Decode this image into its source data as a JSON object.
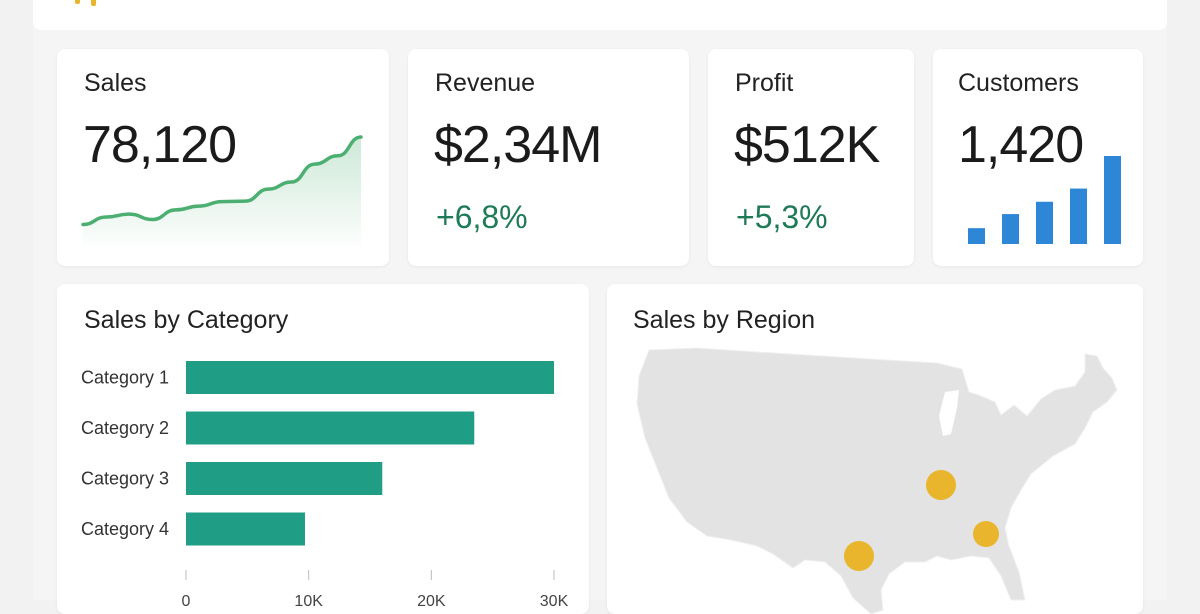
{
  "kpis": {
    "sales": {
      "title": "Sales",
      "value": "78,120",
      "trend": [
        3,
        4.8,
        5.5,
        4.2,
        6.5,
        7.4,
        8.5,
        8.6,
        11.5,
        13.2,
        17.5,
        19.5,
        24
      ]
    },
    "revenue": {
      "title": "Revenue",
      "value": "$2,34M",
      "delta": "+6,8%"
    },
    "profit": {
      "title": "Profit",
      "value": "$512K",
      "delta": "+5,3%"
    },
    "customers": {
      "title": "Customers",
      "value": "1,420",
      "bars": [
        0.18,
        0.34,
        0.48,
        0.63,
        1.0
      ]
    }
  },
  "category_panel": {
    "title": "Sales by Category",
    "chart_data": {
      "type": "bar",
      "orientation": "horizontal",
      "categories": [
        "Category 1",
        "Category 2",
        "Category 3",
        "Category 4"
      ],
      "values": [
        30000,
        23500,
        16000,
        9700
      ],
      "x_ticks": [
        "0",
        "10K",
        "20K",
        "30K"
      ],
      "xlim": [
        0,
        30000
      ],
      "grid": false
    }
  },
  "region_panel": {
    "title": "Sales by Region"
  },
  "colors": {
    "kpi_delta": "#1e7a57",
    "sales_line": "#4caf72",
    "customer_bars": "#2e86d6",
    "category_bars": "#1f9e85",
    "map_fill": "#e3e3e3",
    "region_markers": "#e9b52c"
  }
}
